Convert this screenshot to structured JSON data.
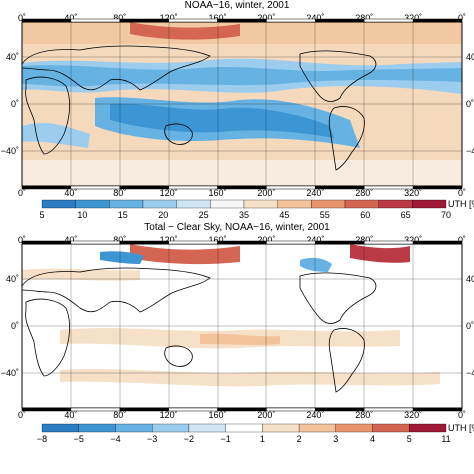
{
  "top": {
    "title": "NOAA−16, winter, 2001",
    "lon_ticks": [
      "0˚",
      "40˚",
      "80˚",
      "120˚",
      "160˚",
      "200˚",
      "240˚",
      "280˚",
      "320˚",
      "0˚"
    ],
    "lat_ticks": [
      "40˚",
      "0˚",
      "−40˚"
    ],
    "colorbar": {
      "unit_label": "UTH [%",
      "labels": [
        "5",
        "10",
        "15",
        "20",
        "25",
        "35",
        "45",
        "55",
        "60",
        "65",
        "70"
      ],
      "colors": [
        "#2a7bc2",
        "#3d95d3",
        "#66b3e3",
        "#9ccdee",
        "#cfe5f3",
        "#f6f6f6",
        "#f6e0c7",
        "#f2c29b",
        "#e8946d",
        "#d36552",
        "#bb3a46",
        "#9e1a35"
      ]
    }
  },
  "bottom": {
    "title": "Total − Clear Sky, NOAA−16, winter, 2001",
    "lon_ticks": [
      "0˚",
      "40˚",
      "80˚",
      "120˚",
      "160˚",
      "200˚",
      "240˚",
      "280˚",
      "320˚",
      "0˚"
    ],
    "lat_ticks": [
      "40˚",
      "0˚",
      "−40˚"
    ],
    "colorbar": {
      "unit_label": "UTH [%",
      "labels": [
        "−8",
        "−5",
        "−4",
        "−3",
        "−2",
        "−1",
        "1",
        "2",
        "3",
        "4",
        "5",
        "11"
      ],
      "colors": [
        "#2a7bc2",
        "#3d95d3",
        "#66b3e3",
        "#9ccdee",
        "#cfe5f3",
        "#ffffff",
        "#f6e0c7",
        "#f2c29b",
        "#e8946d",
        "#d36552",
        "#9e1a35"
      ]
    }
  }
}
